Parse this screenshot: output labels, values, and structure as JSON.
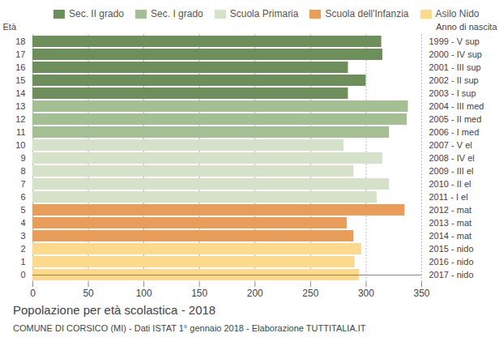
{
  "chart_data": {
    "type": "bar",
    "orientation": "horizontal",
    "title": "Popolazione per età scolastica - 2018",
    "subtitle": "COMUNE DI CORSICO (MI) - Dati ISTAT 1° gennaio 2018 - Elaborazione TUTTITALIA.IT",
    "y_label": "Età",
    "right_label": "Anno di nascita",
    "categories": [
      "18",
      "17",
      "16",
      "15",
      "14",
      "13",
      "12",
      "11",
      "10",
      "9",
      "8",
      "7",
      "6",
      "5",
      "4",
      "3",
      "2",
      "1",
      "0"
    ],
    "right_labels": [
      "1999 - V sup",
      "2000 - IV sup",
      "2001 - III sup",
      "2002 - II sup",
      "2003 - I sup",
      "2004 - III med",
      "2005 - II med",
      "2006 - I med",
      "2007 - V el",
      "2008 - IV el",
      "2009 - III el",
      "2010 - II el",
      "2011 - I el",
      "2012 - mat",
      "2013 - mat",
      "2014 - mat",
      "2015 - nido",
      "2016 - nido",
      "2017 - nido"
    ],
    "series": [
      {
        "name": "Sec. II grado",
        "color": "#6e8f5c",
        "values": [
          314,
          315,
          284,
          300,
          284,
          null,
          null,
          null,
          null,
          null,
          null,
          null,
          null,
          null,
          null,
          null,
          null,
          null,
          null
        ]
      },
      {
        "name": "Sec. I grado",
        "color": "#a4bf93",
        "values": [
          null,
          null,
          null,
          null,
          null,
          338,
          337,
          321,
          null,
          null,
          null,
          null,
          null,
          null,
          null,
          null,
          null,
          null,
          null
        ]
      },
      {
        "name": "Scuola Primaria",
        "color": "#d5e1c8",
        "values": [
          null,
          null,
          null,
          null,
          null,
          null,
          null,
          null,
          280,
          315,
          289,
          321,
          310,
          null,
          null,
          null,
          null,
          null,
          null
        ]
      },
      {
        "name": "Scuola dell'Infanzia",
        "color": "#e99d5a",
        "values": [
          null,
          null,
          null,
          null,
          null,
          null,
          null,
          null,
          null,
          null,
          null,
          null,
          null,
          335,
          283,
          289,
          null,
          null,
          null
        ]
      },
      {
        "name": "Asilo Nido",
        "color": "#fdd98e",
        "values": [
          null,
          null,
          null,
          null,
          null,
          null,
          null,
          null,
          null,
          null,
          null,
          null,
          null,
          null,
          null,
          null,
          296,
          290,
          294
        ]
      }
    ],
    "xlim": [
      0,
      350
    ],
    "xticks": [
      0,
      50,
      100,
      150,
      200,
      250,
      300,
      350
    ],
    "grid": true,
    "legend": "top"
  }
}
